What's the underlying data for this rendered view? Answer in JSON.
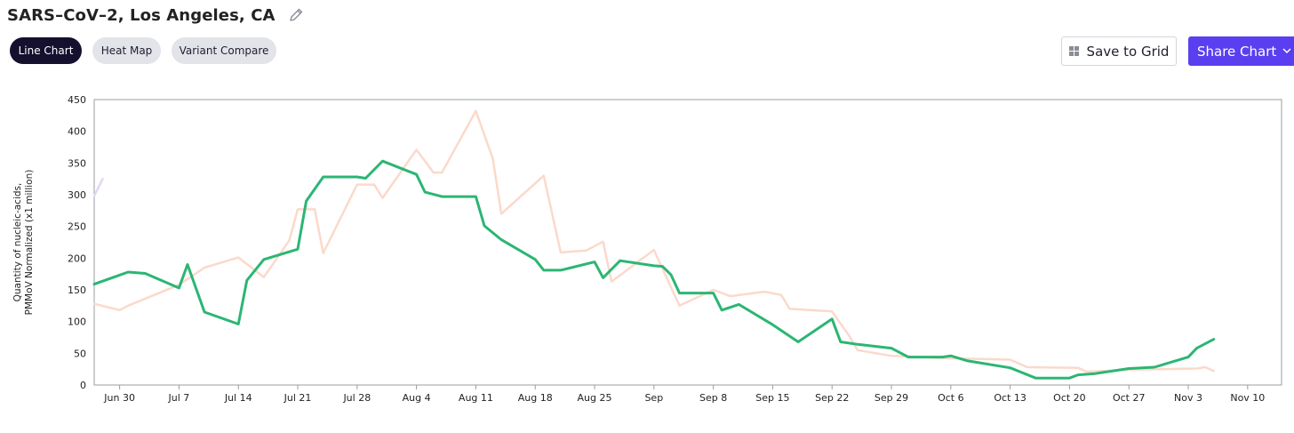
{
  "header": {
    "title": "SARS–CoV–2, Los Angeles, CA",
    "edit_icon": "pencil-icon"
  },
  "tabs": [
    {
      "label": "Line Chart",
      "active": true
    },
    {
      "label": "Heat Map",
      "active": false
    },
    {
      "label": "Variant Compare",
      "active": false
    }
  ],
  "toolbar": {
    "save_label": "Save to Grid",
    "save_icon": "grid-icon",
    "share_label": "Share Chart",
    "share_icon": "chevron-down-icon"
  },
  "colors": {
    "accent": "#5a3ff0",
    "primary_series": "#2bb673",
    "secondary_series": "#fbd9cb",
    "tab_active": "#14102e",
    "tab_inactive": "#e2e4ea"
  },
  "chart_data": {
    "type": "line",
    "ylabel_lines": [
      "Quantity of nucleic-acids,",
      "PMMoV Normalized (x1 million)"
    ],
    "ylim": [
      0,
      450
    ],
    "yticks": [
      0,
      50,
      100,
      150,
      200,
      250,
      300,
      350,
      400,
      450
    ],
    "x_range": [
      "2024-06-27",
      "2024-11-14"
    ],
    "xticks": [
      {
        "date": "2024-06-30",
        "label": "Jun 30"
      },
      {
        "date": "2024-07-07",
        "label": "Jul 7"
      },
      {
        "date": "2024-07-14",
        "label": "Jul 14"
      },
      {
        "date": "2024-07-21",
        "label": "Jul 21"
      },
      {
        "date": "2024-07-28",
        "label": "Jul 28"
      },
      {
        "date": "2024-08-04",
        "label": "Aug 4"
      },
      {
        "date": "2024-08-11",
        "label": "Aug 11"
      },
      {
        "date": "2024-08-18",
        "label": "Aug 18"
      },
      {
        "date": "2024-08-25",
        "label": "Aug 25"
      },
      {
        "date": "2024-09-01",
        "label": "Sep"
      },
      {
        "date": "2024-09-08",
        "label": "Sep 8"
      },
      {
        "date": "2024-09-15",
        "label": "Sep 15"
      },
      {
        "date": "2024-09-22",
        "label": "Sep 22"
      },
      {
        "date": "2024-09-29",
        "label": "Sep 29"
      },
      {
        "date": "2024-10-06",
        "label": "Oct 6"
      },
      {
        "date": "2024-10-13",
        "label": "Oct 13"
      },
      {
        "date": "2024-10-20",
        "label": "Oct 20"
      },
      {
        "date": "2024-10-27",
        "label": "Oct 27"
      },
      {
        "date": "2024-11-03",
        "label": "Nov 3"
      },
      {
        "date": "2024-11-10",
        "label": "Nov 10"
      }
    ],
    "grid": false,
    "series": [
      {
        "key": "secondary",
        "color": "#fbd9cb",
        "points": [
          [
            "2024-06-27",
            128
          ],
          [
            "2024-06-30",
            118
          ],
          [
            "2024-07-01",
            125
          ],
          [
            "2024-07-07",
            158
          ],
          [
            "2024-07-10",
            185
          ],
          [
            "2024-07-14",
            201
          ],
          [
            "2024-07-17",
            170
          ],
          [
            "2024-07-20",
            228
          ],
          [
            "2024-07-21",
            277
          ],
          [
            "2024-07-23",
            277
          ],
          [
            "2024-07-24",
            208
          ],
          [
            "2024-07-28",
            316
          ],
          [
            "2024-07-30",
            316
          ],
          [
            "2024-07-31",
            295
          ],
          [
            "2024-08-04",
            371
          ],
          [
            "2024-08-06",
            335
          ],
          [
            "2024-08-07",
            335
          ],
          [
            "2024-08-11",
            432
          ],
          [
            "2024-08-13",
            357
          ],
          [
            "2024-08-14",
            270
          ],
          [
            "2024-08-19",
            330
          ],
          [
            "2024-08-21",
            209
          ],
          [
            "2024-08-24",
            212
          ],
          [
            "2024-08-26",
            226
          ],
          [
            "2024-08-27",
            163
          ],
          [
            "2024-09-01",
            213
          ],
          [
            "2024-09-04",
            125
          ],
          [
            "2024-09-08",
            150
          ],
          [
            "2024-09-10",
            140
          ],
          [
            "2024-09-14",
            147
          ],
          [
            "2024-09-16",
            142
          ],
          [
            "2024-09-17",
            120
          ],
          [
            "2024-09-22",
            116
          ],
          [
            "2024-09-24",
            78
          ],
          [
            "2024-09-25",
            55
          ],
          [
            "2024-09-29",
            46
          ],
          [
            "2024-10-06",
            42
          ],
          [
            "2024-10-13",
            40
          ],
          [
            "2024-10-15",
            28
          ],
          [
            "2024-10-21",
            27
          ],
          [
            "2024-10-22",
            21
          ],
          [
            "2024-10-27",
            24
          ],
          [
            "2024-11-04",
            26
          ],
          [
            "2024-11-05",
            28
          ],
          [
            "2024-11-06",
            22
          ]
        ]
      },
      {
        "key": "primary",
        "color": "#2bb673",
        "points": [
          [
            "2024-06-27",
            159
          ],
          [
            "2024-07-01",
            178
          ],
          [
            "2024-07-03",
            176
          ],
          [
            "2024-07-07",
            153
          ],
          [
            "2024-07-08",
            190
          ],
          [
            "2024-07-10",
            115
          ],
          [
            "2024-07-14",
            96
          ],
          [
            "2024-07-15",
            165
          ],
          [
            "2024-07-17",
            198
          ],
          [
            "2024-07-21",
            214
          ],
          [
            "2024-07-22",
            290
          ],
          [
            "2024-07-24",
            328
          ],
          [
            "2024-07-28",
            328
          ],
          [
            "2024-07-29",
            326
          ],
          [
            "2024-07-31",
            353
          ],
          [
            "2024-08-04",
            332
          ],
          [
            "2024-08-05",
            304
          ],
          [
            "2024-08-07",
            297
          ],
          [
            "2024-08-11",
            297
          ],
          [
            "2024-08-12",
            251
          ],
          [
            "2024-08-14",
            229
          ],
          [
            "2024-08-18",
            198
          ],
          [
            "2024-08-19",
            181
          ],
          [
            "2024-08-21",
            181
          ],
          [
            "2024-08-25",
            194
          ],
          [
            "2024-08-26",
            169
          ],
          [
            "2024-08-28",
            196
          ],
          [
            "2024-09-01",
            188
          ],
          [
            "2024-09-02",
            187
          ],
          [
            "2024-09-03",
            174
          ],
          [
            "2024-09-04",
            145
          ],
          [
            "2024-09-08",
            145
          ],
          [
            "2024-09-09",
            118
          ],
          [
            "2024-09-11",
            127
          ],
          [
            "2024-09-15",
            95
          ],
          [
            "2024-09-18",
            68
          ],
          [
            "2024-09-22",
            104
          ],
          [
            "2024-09-23",
            68
          ],
          [
            "2024-09-25",
            64
          ],
          [
            "2024-09-29",
            58
          ],
          [
            "2024-10-01",
            44
          ],
          [
            "2024-10-05",
            44
          ],
          [
            "2024-10-06",
            46
          ],
          [
            "2024-10-08",
            38
          ],
          [
            "2024-10-13",
            27
          ],
          [
            "2024-10-16",
            11
          ],
          [
            "2024-10-20",
            11
          ],
          [
            "2024-10-21",
            16
          ],
          [
            "2024-10-23",
            18
          ],
          [
            "2024-10-27",
            26
          ],
          [
            "2024-10-30",
            28
          ],
          [
            "2024-11-03",
            44
          ],
          [
            "2024-11-04",
            58
          ],
          [
            "2024-11-06",
            72
          ]
        ]
      },
      {
        "key": "fragment",
        "color": "#e3d7f7",
        "points": [
          [
            "2024-06-27",
            298
          ],
          [
            "2024-06-28",
            325
          ]
        ]
      }
    ]
  }
}
